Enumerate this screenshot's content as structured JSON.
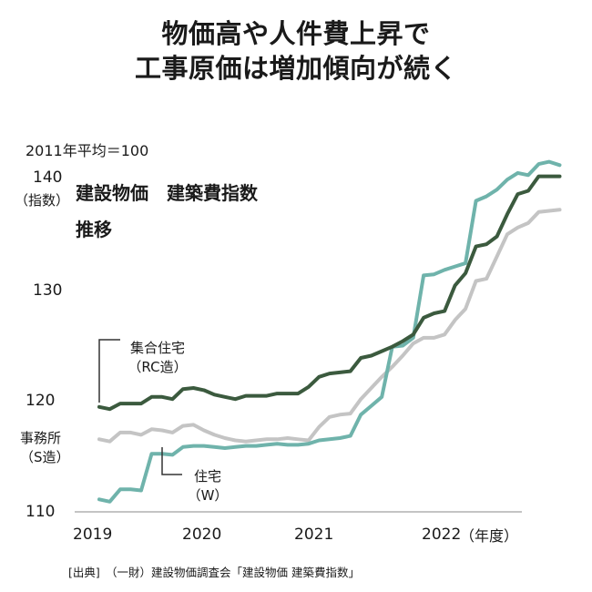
{
  "title": {
    "line1": "物価高や人件費上昇で",
    "line2": "工事原価は増加傾向が続く"
  },
  "base_note": "2011年平均＝100",
  "source": "[出典]　（一財）建設物価調査会「建設物価 建築費指数」",
  "colors": {
    "rc": "#3b5a3e",
    "s": "#c4c4c4",
    "w": "#6fb3ab",
    "axis": "#a0a0a0",
    "connector": "#333333"
  },
  "chart_data": {
    "type": "line",
    "title_line1": "建設物価　建築費指数",
    "title_line2": "推移",
    "ylabel": "（指数）",
    "xlabel": "（年度）",
    "ylim": [
      110,
      140
    ],
    "yticks": [
      110,
      120,
      130,
      140
    ],
    "ytick_labels": [
      "110",
      "120",
      "130",
      "140"
    ],
    "xlim": [
      2019.0,
      2023.0
    ],
    "xticks": [
      2019,
      2020,
      2021,
      2022
    ],
    "xtick_labels": [
      "2019",
      "2020",
      "2021",
      "2022"
    ],
    "grid": false,
    "x_start": 2019.05,
    "x_step": 0.0952,
    "series": [
      {
        "key": "rc",
        "name": "集合住宅（RC造）",
        "label_line1": "集合住宅",
        "label_line2": "（RC造）",
        "values": [
          119.5,
          119.3,
          119.8,
          119.8,
          119.8,
          120.4,
          120.4,
          120.2,
          121.1,
          121.2,
          121.0,
          120.6,
          120.4,
          120.2,
          120.5,
          120.5,
          120.5,
          120.7,
          120.7,
          120.7,
          121.3,
          122.2,
          122.5,
          122.6,
          122.7,
          123.9,
          124.1,
          124.5,
          124.9,
          125.4,
          126.0,
          127.5,
          127.9,
          128.1,
          130.4,
          131.5,
          133.9,
          134.1,
          134.8,
          136.8,
          138.6,
          138.9,
          140.2,
          140.2,
          140.2
        ]
      },
      {
        "key": "s",
        "name": "事務所（S造）",
        "label_line1": "事務所",
        "label_line2": "（S造）",
        "values": [
          116.6,
          116.4,
          117.2,
          117.2,
          117.0,
          117.5,
          117.4,
          117.2,
          117.8,
          117.9,
          117.4,
          117.0,
          116.7,
          116.5,
          116.4,
          116.5,
          116.6,
          116.6,
          116.7,
          116.6,
          116.5,
          117.7,
          118.6,
          118.8,
          118.9,
          120.2,
          121.2,
          122.2,
          123.1,
          124.1,
          125.2,
          125.7,
          125.7,
          126.0,
          127.3,
          128.3,
          130.8,
          131.0,
          133.0,
          135.0,
          135.6,
          136.0,
          137.0,
          137.1,
          137.2
        ]
      },
      {
        "key": "w",
        "name": "住宅（W）",
        "label_line1": "住宅",
        "label_line2": "（W）",
        "values": [
          111.2,
          111.0,
          112.1,
          112.1,
          112.0,
          115.3,
          115.3,
          115.2,
          115.9,
          116.0,
          116.0,
          115.9,
          115.8,
          115.9,
          116.0,
          116.0,
          116.1,
          116.2,
          116.1,
          116.1,
          116.2,
          116.5,
          116.6,
          116.7,
          116.9,
          118.8,
          119.6,
          120.4,
          124.9,
          125.0,
          125.7,
          131.3,
          131.4,
          131.8,
          132.1,
          132.4,
          138.0,
          138.4,
          139.0,
          139.9,
          140.5,
          140.3,
          141.3,
          141.5,
          141.2
        ]
      }
    ]
  }
}
